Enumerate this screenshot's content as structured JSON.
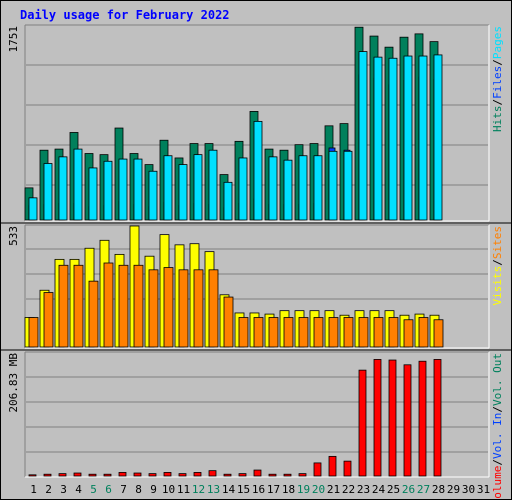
{
  "colors": {
    "background": "#c0c0c0",
    "title": "#0000ff",
    "hits": "#00805c",
    "files": "#0040ff",
    "pages": "#00e0ff",
    "visits": "#ffff00",
    "sites": "#ff8000",
    "kbytes": "#ff0000",
    "axis_label": "#000000",
    "weekend_label": "#00805c",
    "separator": "#000000"
  },
  "chart_data": {
    "type": "bar",
    "title": "Daily usage for February 2022",
    "categories": [
      "1",
      "2",
      "3",
      "4",
      "5",
      "6",
      "7",
      "8",
      "9",
      "10",
      "11",
      "12",
      "13",
      "14",
      "15",
      "16",
      "17",
      "18",
      "19",
      "20",
      "21",
      "22",
      "23",
      "24",
      "25",
      "26",
      "27",
      "28",
      "29",
      "30",
      "31"
    ],
    "weekend_days": [
      "5",
      "6",
      "12",
      "13",
      "19",
      "20",
      "26",
      "27"
    ],
    "panels": [
      {
        "id": "hits",
        "ymax_label": "1751",
        "ymax": 1751,
        "legend": [
          {
            "text": "Hits",
            "color": "#00805c"
          },
          {
            "text": "/",
            "color": "#000000"
          },
          {
            "text": "Files",
            "color": "#0040ff"
          },
          {
            "text": "/",
            "color": "#000000"
          },
          {
            "text": "Pages",
            "color": "#00e0ff"
          }
        ],
        "series": [
          {
            "name": "Hits",
            "color": "#00805c",
            "values": [
              290,
              630,
              640,
              790,
              600,
              590,
              830,
              600,
              500,
              720,
              560,
              690,
              690,
              410,
              710,
              980,
              640,
              630,
              680,
              690,
              850,
              870,
              1740,
              1660,
              1560,
              1650,
              1680,
              1610
            ]
          },
          {
            "name": "Files",
            "color": "#0040ff",
            "values": [
              130,
              140,
              150,
              150,
              120,
              130,
              170,
              140,
              120,
              160,
              130,
              150,
              140,
              110,
              150,
              190,
              140,
              140,
              140,
              150,
              650,
              630,
              1310,
              1280,
              1220,
              1260,
              1290,
              1270
            ]
          },
          {
            "name": "Pages",
            "color": "#00e0ff",
            "values": [
              200,
              510,
              570,
              640,
              470,
              530,
              550,
              550,
              440,
              580,
              500,
              590,
              630,
              340,
              560,
              890,
              570,
              540,
              580,
              580,
              620,
              620,
              1520,
              1470,
              1460,
              1480,
              1480,
              1490
            ]
          }
        ]
      },
      {
        "id": "visits",
        "ymax_label": "533",
        "ymax": 533,
        "legend": [
          {
            "text": "Visits",
            "color": "#ffff00"
          },
          {
            "text": "/",
            "color": "#000000"
          },
          {
            "text": "Sites",
            "color": "#ff8000"
          }
        ],
        "series": [
          {
            "name": "Visits",
            "color": "#ffff00",
            "values": [
              130,
              250,
              386,
              386,
              435,
              470,
              408,
              533,
              400,
              495,
              450,
              455,
              420,
              230,
              150,
              150,
              145,
              160,
              160,
              160,
              160,
              140,
              160,
              160,
              160,
              140,
              145,
              140
            ]
          },
          {
            "name": "Sites",
            "color": "#ff8000",
            "values": [
              130,
              240,
              360,
              360,
              290,
              370,
              360,
              360,
              340,
              350,
              340,
              340,
              340,
              220,
              130,
              130,
              130,
              130,
              130,
              130,
              130,
              130,
              130,
              130,
              130,
              120,
              130,
              120
            ]
          }
        ]
      },
      {
        "id": "volume",
        "ymax_label": "206.83 MB",
        "ymax": 206.83,
        "legend": [
          {
            "text": "Volume",
            "color": "#ff0000"
          },
          {
            "text": "/",
            "color": "#000000"
          },
          {
            "text": "Vol. In",
            "color": "#0040ff"
          },
          {
            "text": "/",
            "color": "#000000"
          },
          {
            "text": "Vol. Out",
            "color": "#00805c"
          }
        ],
        "series": [
          {
            "name": "Volume",
            "color": "#ff0000",
            "values": [
              2,
              3,
              4,
              5,
              3,
              3,
              6,
              5,
              4,
              6,
              4,
              6,
              9,
              3,
              4,
              10,
              3,
              3,
              4,
              22,
              33,
              25,
              178,
              196,
              195,
              187,
              193,
              196
            ]
          }
        ]
      }
    ]
  }
}
